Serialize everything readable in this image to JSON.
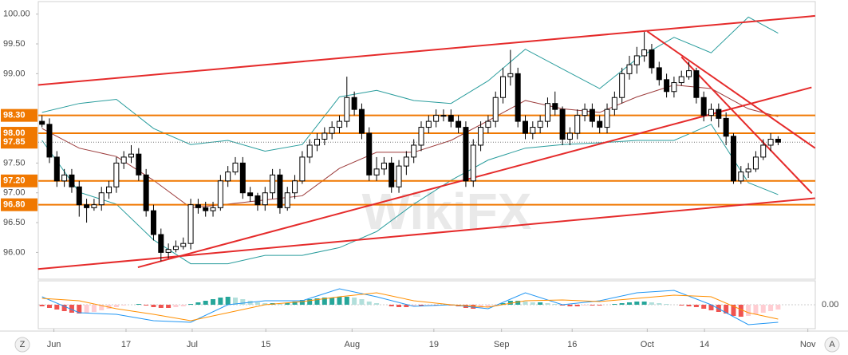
{
  "chart_data": {
    "type": "candlestick",
    "watermark": "WikiFX",
    "open": [
      98.2,
      98.15,
      97.6,
      97.2,
      97.3,
      97.1,
      96.8,
      96.75,
      96.8,
      97.0,
      97.1,
      97.5,
      97.6,
      97.65,
      97.3,
      96.7,
      96.3,
      96.0,
      96.05,
      96.1,
      96.15,
      96.8,
      96.75,
      96.7,
      96.75,
      97.2,
      97.35,
      97.5,
      97.0,
      96.95,
      96.8,
      97.0,
      97.3,
      96.75,
      97.0,
      97.2,
      97.6,
      97.8,
      97.9,
      98.0,
      98.1,
      98.2,
      98.6,
      98.4,
      98.0,
      97.3,
      97.4,
      97.5,
      97.1,
      97.45,
      97.6,
      97.8,
      98.1,
      98.2,
      98.3,
      98.3,
      98.2,
      98.1,
      97.2,
      97.8,
      98.1,
      98.2,
      98.6,
      98.95,
      99.0,
      98.2,
      98.0,
      98.1,
      98.2,
      98.5,
      98.4,
      97.9,
      98.0,
      98.3,
      98.4,
      98.2,
      98.1,
      98.4,
      98.6,
      99.0,
      99.15,
      99.3,
      99.4,
      99.1,
      98.9,
      98.7,
      98.85,
      98.95,
      99.05,
      98.6,
      98.3,
      98.4,
      98.25,
      97.95,
      97.2,
      97.35,
      97.4,
      97.6,
      97.8,
      97.9
    ],
    "high": [
      98.3,
      98.25,
      97.7,
      97.4,
      97.4,
      97.2,
      96.9,
      96.9,
      97.1,
      97.2,
      97.6,
      97.7,
      97.8,
      97.75,
      97.4,
      96.8,
      96.4,
      96.15,
      96.2,
      96.25,
      96.9,
      96.9,
      96.85,
      96.85,
      97.3,
      97.45,
      97.6,
      97.6,
      97.1,
      97.0,
      97.1,
      97.4,
      97.4,
      97.1,
      97.3,
      97.7,
      97.9,
      98.0,
      98.1,
      98.2,
      98.3,
      98.95,
      98.7,
      98.5,
      98.1,
      97.6,
      97.6,
      97.6,
      97.55,
      97.7,
      97.9,
      98.2,
      98.3,
      98.4,
      98.4,
      98.4,
      98.3,
      98.2,
      97.9,
      98.2,
      98.3,
      98.7,
      99.1,
      99.4,
      99.1,
      98.3,
      98.2,
      98.3,
      98.6,
      98.7,
      98.45,
      98.1,
      98.4,
      98.5,
      98.5,
      98.3,
      98.5,
      98.7,
      99.1,
      99.3,
      99.45,
      99.7,
      99.5,
      99.2,
      99.0,
      98.95,
      99.05,
      99.2,
      99.1,
      98.7,
      98.5,
      98.5,
      98.35,
      98.0,
      97.45,
      97.5,
      97.7,
      97.9,
      98.0,
      97.95
    ],
    "low": [
      98.1,
      97.5,
      97.1,
      97.1,
      97.0,
      96.6,
      96.5,
      96.7,
      96.7,
      96.9,
      97.0,
      97.4,
      97.5,
      97.2,
      96.6,
      96.2,
      95.85,
      95.9,
      96.0,
      96.05,
      96.05,
      96.65,
      96.6,
      96.6,
      96.7,
      97.1,
      97.3,
      96.9,
      96.85,
      96.7,
      96.7,
      96.9,
      96.65,
      96.7,
      96.9,
      97.15,
      97.5,
      97.7,
      97.8,
      97.9,
      98.0,
      98.1,
      98.3,
      97.9,
      97.2,
      97.2,
      97.3,
      97.0,
      97.0,
      97.3,
      97.5,
      97.7,
      98.0,
      98.1,
      98.2,
      98.1,
      98.0,
      97.1,
      97.1,
      97.7,
      98.0,
      98.1,
      98.5,
      98.8,
      98.1,
      97.9,
      97.9,
      98.0,
      98.1,
      98.3,
      97.8,
      97.8,
      97.9,
      98.2,
      98.1,
      98.0,
      98.0,
      98.3,
      98.5,
      98.9,
      99.0,
      99.2,
      99.0,
      98.8,
      98.6,
      98.6,
      98.8,
      98.9,
      98.5,
      98.2,
      98.2,
      98.1,
      97.8,
      97.15,
      97.15,
      97.25,
      97.35,
      97.55,
      97.7,
      97.8
    ],
    "close": [
      98.15,
      97.6,
      97.2,
      97.3,
      97.1,
      96.8,
      96.75,
      96.8,
      97.0,
      97.1,
      97.5,
      97.6,
      97.65,
      97.3,
      96.7,
      96.3,
      96.0,
      96.05,
      96.1,
      96.15,
      96.8,
      96.75,
      96.7,
      96.75,
      97.2,
      97.35,
      97.5,
      97.0,
      96.95,
      96.8,
      97.0,
      97.3,
      96.75,
      97.0,
      97.2,
      97.6,
      97.8,
      97.9,
      98.0,
      98.1,
      98.2,
      98.6,
      98.4,
      98.0,
      97.3,
      97.4,
      97.5,
      97.1,
      97.45,
      97.6,
      97.8,
      98.1,
      98.2,
      98.3,
      98.3,
      98.2,
      98.1,
      97.2,
      97.8,
      98.1,
      98.2,
      98.6,
      98.95,
      99.0,
      98.2,
      98.0,
      98.1,
      98.2,
      98.5,
      98.4,
      97.9,
      98.0,
      98.3,
      98.4,
      98.2,
      98.1,
      98.4,
      98.6,
      99.0,
      99.15,
      99.3,
      99.4,
      99.1,
      98.9,
      98.7,
      98.85,
      98.95,
      99.05,
      98.6,
      98.3,
      98.4,
      98.25,
      97.95,
      97.2,
      97.35,
      97.4,
      97.6,
      97.8,
      97.9,
      97.85
    ],
    "up_color": "#ffffff",
    "down_color": "#000000",
    "xlim": [
      -0.5,
      104
    ],
    "ylim": [
      95.55,
      100.21
    ],
    "xticks": [
      {
        "value": 1.6,
        "label": "Jun"
      },
      {
        "value": 11.3,
        "label": "17"
      },
      {
        "value": 20.2,
        "label": "Jul"
      },
      {
        "value": 30.1,
        "label": "15"
      },
      {
        "value": 41.7,
        "label": "Aug"
      },
      {
        "value": 52.7,
        "label": "19"
      },
      {
        "value": 61.8,
        "label": "Sep"
      },
      {
        "value": 71.3,
        "label": "16"
      },
      {
        "value": 81.4,
        "label": "Oct"
      },
      {
        "value": 89.1,
        "label": "14"
      },
      {
        "value": 103.0,
        "label": "Nov"
      }
    ],
    "yticks": [
      {
        "value": 96.0,
        "label": "96.00"
      },
      {
        "value": 96.5,
        "label": "96.50"
      },
      {
        "value": 97.0,
        "label": "97.00"
      },
      {
        "value": 97.5,
        "label": "97.50"
      },
      {
        "value": 99.0,
        "label": "99.00"
      },
      {
        "value": 99.5,
        "label": "99.50"
      },
      {
        "value": 100.0,
        "label": "100.00"
      }
    ],
    "levels": [
      {
        "value": 98.3,
        "label": "98.30"
      },
      {
        "value": 98.0,
        "label": "98.00"
      },
      {
        "value": 97.2,
        "label": "97.20"
      },
      {
        "value": 96.8,
        "label": "96.80"
      }
    ],
    "level_color": "#f07800",
    "current": {
      "value": 97.85,
      "label": "97.85"
    },
    "bands": {
      "x": [
        0,
        5,
        10,
        15,
        20,
        25,
        30,
        35,
        40,
        45,
        50,
        55,
        60,
        65,
        70,
        75,
        80,
        85,
        90,
        95,
        99
      ],
      "upper": [
        98.35,
        98.5,
        98.57,
        98.08,
        97.81,
        97.88,
        97.7,
        97.81,
        98.61,
        98.72,
        98.55,
        98.5,
        98.88,
        99.41,
        99.08,
        98.75,
        99.25,
        99.61,
        99.35,
        99.95,
        99.68
      ],
      "middle": [
        98.08,
        97.75,
        97.61,
        97.21,
        96.75,
        96.81,
        96.88,
        96.95,
        97.41,
        97.68,
        97.68,
        97.88,
        98.21,
        98.55,
        98.41,
        98.35,
        98.61,
        98.81,
        98.75,
        98.41,
        98.28
      ],
      "lower": [
        97.88,
        97.01,
        96.81,
        96.21,
        95.81,
        95.81,
        95.95,
        95.95,
        96.08,
        96.35,
        96.81,
        97.21,
        97.55,
        97.75,
        97.81,
        97.84,
        97.88,
        97.88,
        98.15,
        97.17,
        96.97
      ],
      "band_color": "#2a9d9d",
      "middle_color": "#9c3b3b"
    },
    "trendlines": [
      {
        "x": [
          -0.54,
          103.98
        ],
        "y": [
          98.81,
          99.97
        ]
      },
      {
        "x": [
          -0.54,
          103.98
        ],
        "y": [
          95.72,
          96.91
        ]
      },
      {
        "x": [
          12.9,
          103.5
        ],
        "y": [
          95.75,
          98.77
        ]
      },
      {
        "x": [
          81.4,
          103.98
        ],
        "y": [
          99.71,
          97.75
        ]
      },
      {
        "x": [
          86.0,
          103.55
        ],
        "y": [
          99.28,
          96.99
        ]
      }
    ],
    "trend_color": "#e52b2b",
    "macd": {
      "histogram": [
        -0.02,
        -0.04,
        -0.06,
        -0.08,
        -0.1,
        -0.11,
        -0.1,
        -0.09,
        -0.07,
        -0.05,
        -0.03,
        -0.01,
        0.0,
        0.01,
        -0.01,
        -0.03,
        -0.04,
        -0.04,
        -0.03,
        -0.02,
        0.01,
        0.03,
        0.05,
        0.07,
        0.09,
        0.1,
        0.09,
        0.07,
        0.05,
        0.03,
        0.02,
        0.02,
        0.01,
        0.02,
        0.04,
        0.06,
        0.07,
        0.08,
        0.09,
        0.09,
        0.1,
        0.1,
        0.09,
        0.07,
        0.04,
        0.02,
        0.0,
        -0.02,
        -0.03,
        -0.03,
        -0.02,
        -0.02,
        -0.01,
        -0.01,
        0.0,
        -0.01,
        -0.02,
        -0.04,
        -0.05,
        -0.04,
        -0.03,
        -0.01,
        0.02,
        0.05,
        0.05,
        0.04,
        0.03,
        0.03,
        0.02,
        0.01,
        -0.01,
        -0.02,
        -0.02,
        -0.01,
        -0.01,
        -0.01,
        0.0,
        0.01,
        0.02,
        0.03,
        0.04,
        0.04,
        0.03,
        0.02,
        0.01,
        0.0,
        -0.01,
        -0.02,
        -0.03,
        -0.05,
        -0.07,
        -0.09,
        -0.11,
        -0.14,
        -0.15,
        -0.14,
        -0.12,
        -0.1,
        -0.08,
        -0.06
      ],
      "x": [
        0,
        5,
        10,
        15,
        20,
        25,
        30,
        35,
        40,
        45,
        50,
        55,
        60,
        65,
        70,
        75,
        80,
        85,
        90,
        95,
        99
      ],
      "macd": [
        0.1,
        -0.1,
        -0.12,
        -0.2,
        -0.22,
        0.0,
        0.05,
        0.05,
        0.2,
        0.1,
        -0.02,
        0.0,
        -0.05,
        0.15,
        0.0,
        0.05,
        0.15,
        0.18,
        0.0,
        -0.25,
        -0.22
      ],
      "signal": [
        0.08,
        0.05,
        -0.05,
        -0.12,
        -0.2,
        -0.1,
        0.0,
        0.04,
        0.1,
        0.15,
        0.05,
        0.0,
        -0.03,
        0.05,
        0.06,
        0.04,
        0.08,
        0.12,
        0.1,
        -0.1,
        -0.18
      ],
      "ylim": [
        -0.3,
        0.3
      ],
      "yticks": [
        {
          "value": 0,
          "label": "0.00"
        }
      ],
      "macd_color": "#2196f3",
      "signal_color": "#ff8f00",
      "colors": {
        "pos_up": "#26a69a",
        "pos_down": "#b2dfdb",
        "neg_down": "#ef5350",
        "neg_up": "#ffcdd2"
      }
    },
    "buttons": [
      "Z",
      "A"
    ]
  }
}
